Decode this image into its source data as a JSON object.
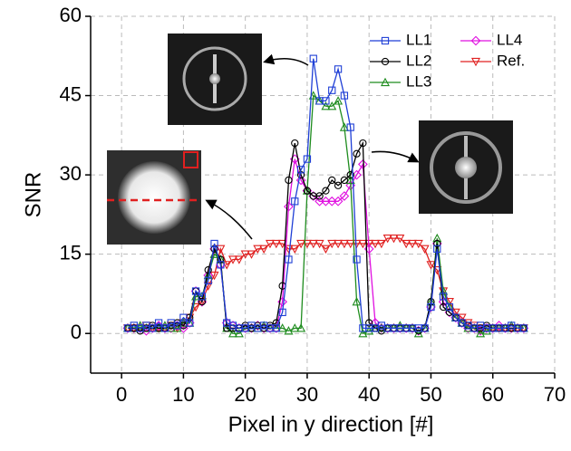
{
  "chart_data": {
    "type": "line",
    "x_label": "Pixel in y direction [#]",
    "y_label": "SNR",
    "xlim": [
      -5,
      70
    ],
    "ylim": [
      -7.5,
      60
    ],
    "xticks": [
      0,
      10,
      20,
      30,
      40,
      50,
      60,
      70
    ],
    "yticks": [
      0,
      15,
      30,
      45,
      60
    ],
    "grid": true,
    "legend": "upper right",
    "x": [
      1,
      2,
      3,
      4,
      5,
      6,
      7,
      8,
      9,
      10,
      11,
      12,
      13,
      14,
      15,
      16,
      17,
      18,
      19,
      20,
      21,
      22,
      23,
      24,
      25,
      26,
      27,
      28,
      29,
      30,
      31,
      32,
      33,
      34,
      35,
      36,
      37,
      38,
      39,
      40,
      41,
      42,
      43,
      44,
      45,
      46,
      47,
      48,
      49,
      50,
      51,
      52,
      53,
      54,
      55,
      56,
      57,
      58,
      59,
      60,
      61,
      62,
      63,
      64,
      65
    ],
    "series": [
      {
        "name": "LL1",
        "color": "#1f3fd6",
        "marker": "square",
        "values": [
          1,
          1.5,
          1,
          1.5,
          1,
          2,
          1,
          2,
          1.5,
          3,
          2,
          8,
          7,
          10,
          17,
          13,
          2,
          1.5,
          1,
          1,
          1.5,
          1,
          1.5,
          1,
          1,
          4,
          14,
          25,
          31,
          33,
          52,
          44,
          44,
          46,
          50,
          45,
          39,
          14,
          1,
          1,
          1,
          1.5,
          1,
          1,
          1,
          1,
          1,
          1,
          1,
          5,
          16,
          7,
          5,
          3,
          2,
          1.5,
          1,
          1.5,
          1,
          1,
          1,
          1,
          1.5,
          1,
          1
        ]
      },
      {
        "name": "LL2",
        "color": "#000000",
        "marker": "circle",
        "values": [
          1,
          1,
          0.5,
          1,
          1.5,
          1,
          1,
          1.5,
          2,
          1.5,
          3,
          8,
          6,
          12,
          16,
          14,
          1,
          1,
          1,
          1.5,
          1,
          1.5,
          1,
          1.5,
          2,
          9,
          29,
          36,
          30,
          27,
          26,
          26,
          27,
          29,
          28,
          29,
          30,
          34,
          36,
          2,
          1,
          0.5,
          1,
          1,
          1,
          1,
          1,
          0.5,
          1,
          6,
          17,
          5,
          4,
          3,
          2,
          1.5,
          1,
          1,
          1.5,
          1,
          1,
          1,
          1,
          1,
          1
        ]
      },
      {
        "name": "LL3",
        "color": "#1e8c1e",
        "marker": "triangle",
        "values": [
          1,
          1,
          1.5,
          1,
          1,
          1,
          1.5,
          1,
          1,
          2,
          2,
          7,
          7,
          11,
          15,
          14,
          1,
          0,
          0,
          1,
          1,
          1,
          1.5,
          1,
          1,
          1,
          0.5,
          1,
          1,
          27,
          45,
          44,
          43,
          43,
          44,
          39,
          29,
          6,
          0,
          0.5,
          1,
          1,
          1,
          1,
          1.5,
          1,
          1,
          0,
          1,
          6,
          18,
          8,
          5,
          3,
          2,
          1,
          1,
          0,
          0.5,
          1,
          1,
          1,
          1.5,
          1,
          1
        ]
      },
      {
        "name": "LL4",
        "color": "#e010e0",
        "marker": "diamond",
        "values": [
          1,
          1,
          1,
          0.5,
          1,
          1.5,
          1,
          1,
          1.5,
          1,
          2,
          8,
          6,
          11,
          16,
          13,
          2,
          1.5,
          1,
          1,
          1,
          1.5,
          1,
          1,
          1,
          6,
          24,
          33,
          29,
          27,
          26,
          25,
          25,
          25,
          25,
          26,
          28,
          30,
          32,
          16,
          2,
          1,
          1,
          1,
          1,
          1,
          1,
          0.5,
          1,
          5,
          17,
          6,
          4,
          3,
          2,
          1,
          1,
          0.5,
          1,
          1,
          1.5,
          1,
          1,
          1,
          1
        ]
      },
      {
        "name": "Ref.",
        "color": "#e02020",
        "marker": "triangle-down",
        "values": [
          1,
          1,
          1,
          1.5,
          1,
          1,
          1,
          1.5,
          1,
          2,
          3,
          5,
          6,
          9,
          11,
          16,
          13,
          14,
          14,
          15,
          15,
          16,
          16,
          17,
          17,
          17,
          16,
          16,
          17,
          17,
          17,
          17,
          16,
          17,
          17,
          17,
          17,
          17,
          17,
          17,
          17,
          17,
          18,
          18,
          18,
          17,
          17,
          17,
          16,
          13,
          12,
          8,
          6,
          4,
          3,
          2,
          1.5,
          1,
          1,
          1,
          1,
          1,
          1,
          1,
          1
        ]
      }
    ]
  }
}
